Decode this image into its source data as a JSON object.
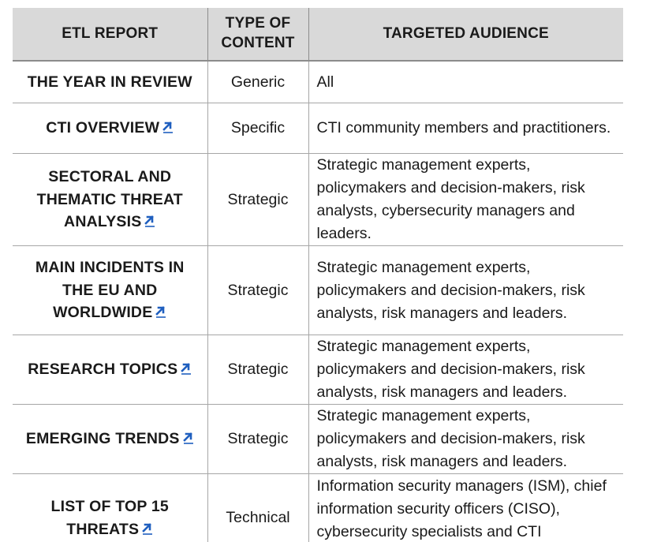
{
  "table": {
    "headers": [
      "ETL REPORT",
      "TYPE OF CONTENT",
      "TARGETED AUDIENCE"
    ],
    "rows": [
      {
        "report": "THE YEAR IN REVIEW",
        "linked": false,
        "type": "Generic",
        "audience": "All"
      },
      {
        "report": "CTI OVERVIEW",
        "linked": true,
        "type": "Specific",
        "audience": "CTI community members and practitioners."
      },
      {
        "report": "SECTORAL AND THEMATIC THREAT ANALYSIS",
        "linked": true,
        "type": "Strategic",
        "audience": "Strategic management experts, policymakers and decision-makers, risk analysts, cybersecurity managers and leaders."
      },
      {
        "report": "MAIN INCIDENTS IN THE EU AND WORLDWIDE",
        "linked": true,
        "type": "Strategic",
        "audience": "Strategic management experts, policymakers and decision-makers, risk analysts, risk managers and leaders."
      },
      {
        "report": "RESEARCH TOPICS",
        "linked": true,
        "type": "Strategic",
        "audience": "Strategic management experts, policymakers and decision-makers, risk analysts, risk managers and leaders."
      },
      {
        "report": "EMERGING TRENDS",
        "linked": true,
        "type": "Strategic",
        "audience": "Strategic management experts, policymakers and decision-makers, risk analysts, risk managers and leaders."
      },
      {
        "report": "LIST OF TOP 15 THREATS",
        "linked": true,
        "type": "Technical",
        "audience": "Information security managers (ISM), chief information security officers (CISO), cybersecurity specialists and CTI"
      }
    ]
  },
  "icons": {
    "link": "external-link-arrow-icon"
  },
  "colors": {
    "header_bg": "#d9d9d9",
    "link_arrow": "#1f5fbf",
    "border": "#a6a6a6"
  }
}
